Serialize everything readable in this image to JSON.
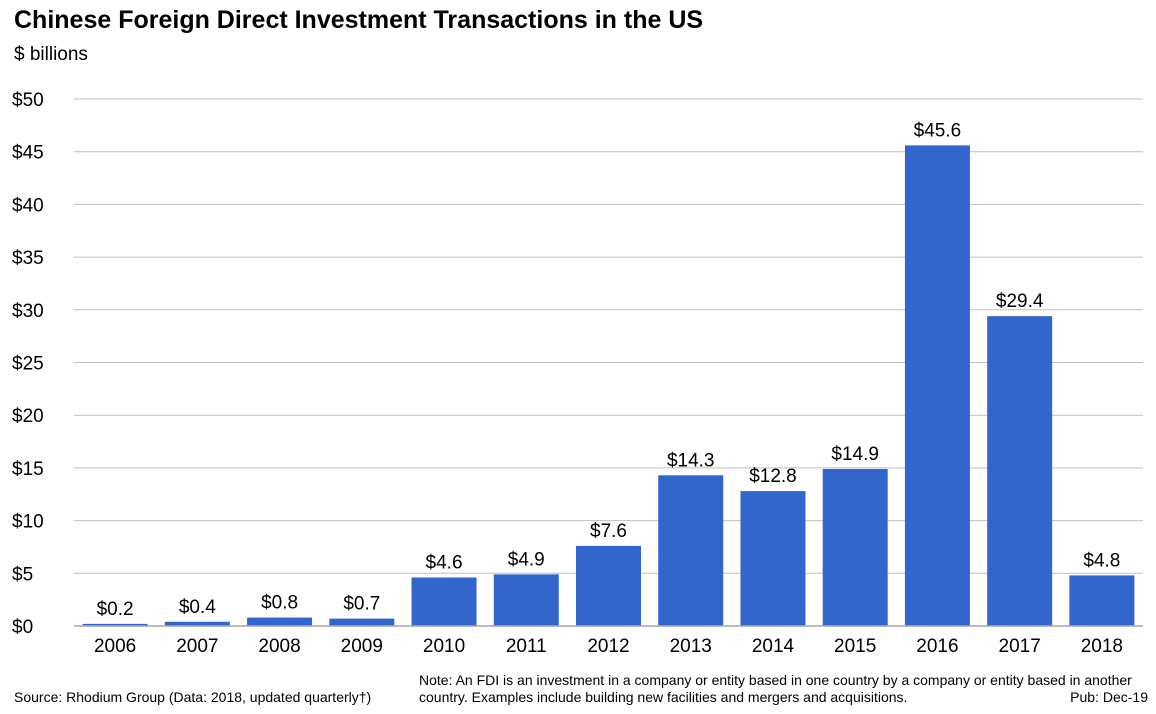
{
  "header": {
    "title": "Chinese Foreign Direct Investment Transactions in the US",
    "subtitle": "$ billions"
  },
  "footer": {
    "source": "Source: Rhodium Group (Data: 2018, updated quarterly†)",
    "note": "Note: An FDI is an investment in a company or entity based in one country by a company or entity based in another country. Examples include building new facilities and mergers and acquisitions.",
    "pub": "Pub: Dec-19"
  },
  "colors": {
    "bar": "#3366cc",
    "grid": "#bfbfbf",
    "axis": "#a6a6a6",
    "text": "#000000"
  },
  "chart_data": {
    "type": "bar",
    "title": "Chinese Foreign Direct Investment Transactions in the US",
    "subtitle": "$ billions",
    "xlabel": "",
    "ylabel": "$ billions",
    "ylim": [
      0,
      50
    ],
    "yticks": [
      0,
      5,
      10,
      15,
      20,
      25,
      30,
      35,
      40,
      45,
      50
    ],
    "ytick_labels": [
      "$0",
      "$5",
      "$10",
      "$15",
      "$20",
      "$25",
      "$30",
      "$35",
      "$40",
      "$45",
      "$50"
    ],
    "grid": true,
    "categories": [
      "2006",
      "2007",
      "2008",
      "2009",
      "2010",
      "2011",
      "2012",
      "2013",
      "2014",
      "2015",
      "2016",
      "2017",
      "2018"
    ],
    "values": [
      0.2,
      0.4,
      0.8,
      0.7,
      4.6,
      4.9,
      7.6,
      14.3,
      12.8,
      14.9,
      45.6,
      29.4,
      4.8
    ],
    "data_labels": [
      "$0.2",
      "$0.4",
      "$0.8",
      "$0.7",
      "$4.6",
      "$4.9",
      "$7.6",
      "$14.3",
      "$12.8",
      "$14.9",
      "$45.6",
      "$29.4",
      "$4.8"
    ]
  }
}
